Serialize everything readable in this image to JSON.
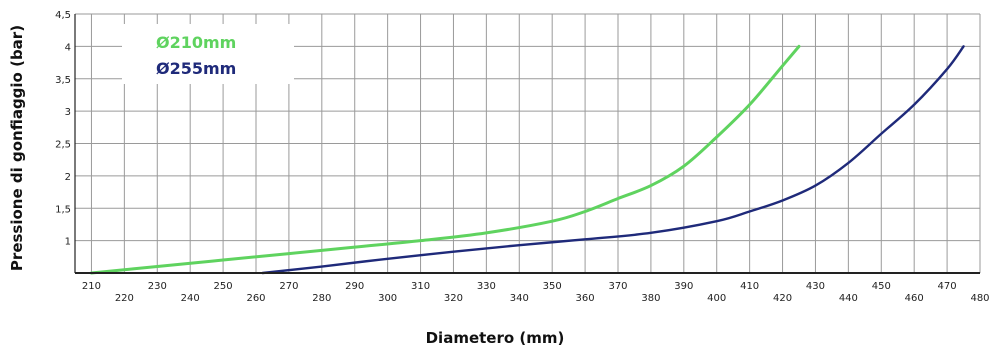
{
  "chart_data": {
    "type": "line",
    "title": "",
    "xlabel": "Diametero (mm)",
    "ylabel": "Pressione di gonfiaggio (bar)",
    "xlim": [
      205,
      480
    ],
    "ylim": [
      0.5,
      4.5
    ],
    "x_ticks": [
      210,
      220,
      230,
      240,
      250,
      260,
      270,
      280,
      290,
      300,
      310,
      320,
      330,
      340,
      350,
      360,
      370,
      380,
      390,
      400,
      410,
      420,
      430,
      440,
      450,
      460,
      470,
      480
    ],
    "x_tick_labels": [
      "210",
      "220",
      "230",
      "240",
      "250",
      "260",
      "270",
      "280",
      "290",
      "300",
      "310",
      "320",
      "330",
      "340",
      "350",
      "360",
      "370",
      "380",
      "390",
      "400",
      "410",
      "420",
      "430",
      "440",
      "450",
      "460",
      "470",
      "480"
    ],
    "y_ticks": [
      1,
      1.5,
      2,
      2.5,
      3,
      3.5,
      4,
      4.5
    ],
    "y_tick_labels": [
      "1",
      "1,5",
      "2",
      "2,5",
      "3",
      "3,5",
      "4",
      "4,5"
    ],
    "grid": true,
    "legend_position": "top-left",
    "series": [
      {
        "name": "Ø210mm",
        "color": "#5fd35f",
        "x": [
          210,
          230,
          250,
          270,
          290,
          310,
          330,
          350,
          360,
          370,
          380,
          390,
          400,
          410,
          420,
          425
        ],
        "y": [
          0.5,
          0.6,
          0.7,
          0.8,
          0.9,
          1.0,
          1.12,
          1.3,
          1.45,
          1.65,
          1.85,
          2.15,
          2.6,
          3.1,
          3.7,
          4.0
        ]
      },
      {
        "name": "Ø255mm",
        "color": "#1f2a7a",
        "x": [
          262,
          280,
          300,
          320,
          340,
          360,
          380,
          400,
          410,
          420,
          430,
          440,
          450,
          460,
          470,
          475
        ],
        "y": [
          0.5,
          0.6,
          0.72,
          0.83,
          0.93,
          1.02,
          1.12,
          1.3,
          1.45,
          1.62,
          1.85,
          2.2,
          2.65,
          3.1,
          3.65,
          4.0
        ]
      }
    ]
  }
}
